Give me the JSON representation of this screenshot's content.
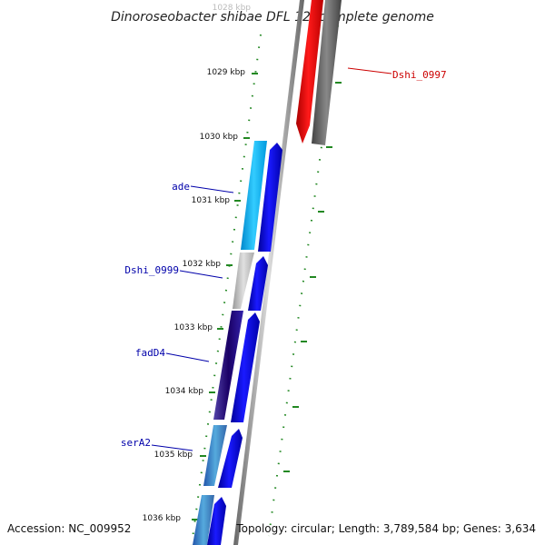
{
  "title": "Dinoroseobacter shibae DFL 12, complete genome",
  "footer": {
    "accession": "Accession: NC_009952",
    "stats": "Topology: circular; Length: 3,789,584 bp; Genes: 3,634"
  },
  "kbp_labels": [
    "1028 kbp",
    "1029 kbp",
    "1030 kbp",
    "1031 kbp",
    "1032 kbp",
    "1033 kbp",
    "1034 kbp",
    "1035 kbp",
    "1036 kbp"
  ],
  "gene_labels": [
    {
      "text": "Dshi_0997",
      "color": "#cc0000"
    },
    {
      "text": "ade",
      "color": "#0000aa"
    },
    {
      "text": "Dshi_0999",
      "color": "#0000aa"
    },
    {
      "text": "fadD4",
      "color": "#0000aa"
    },
    {
      "text": "serA2",
      "color": "#0000aa"
    }
  ],
  "colors": {
    "forward_gene": "#0000ee",
    "reverse_gene": "#ff0000",
    "backbone": "#888888",
    "tick": "#228822"
  }
}
